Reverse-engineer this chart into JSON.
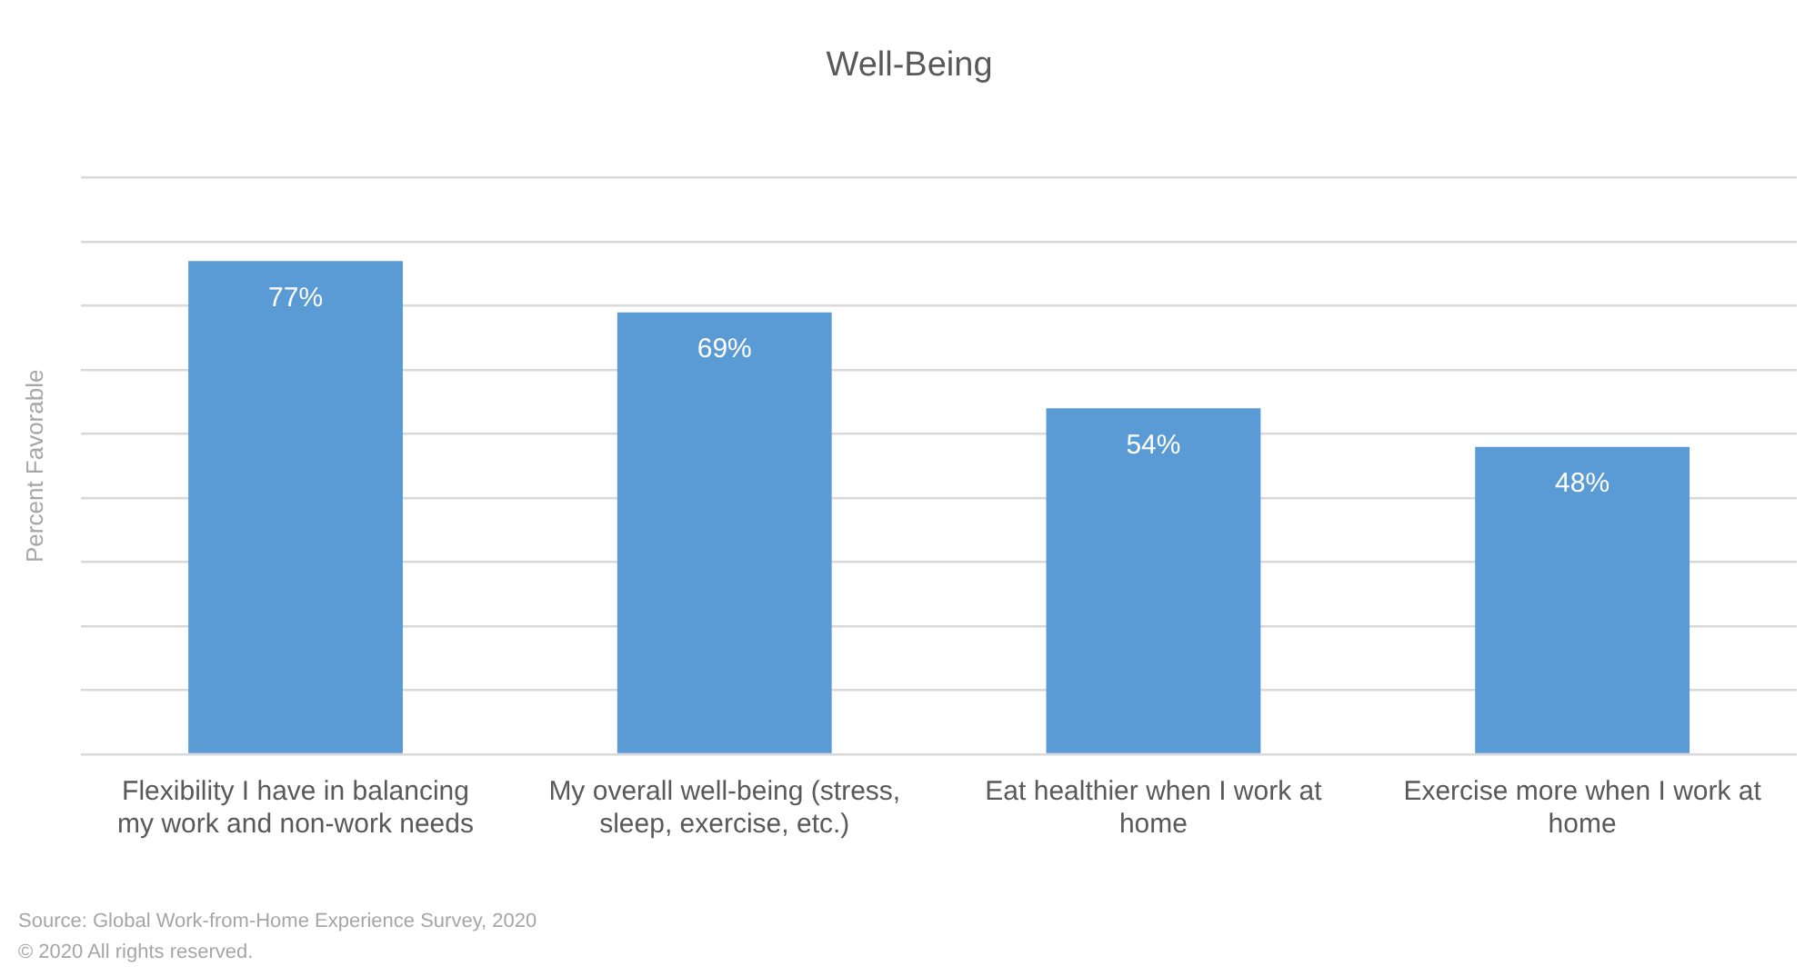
{
  "chart_data": {
    "type": "bar",
    "title": "Well-Being",
    "ylabel": "Percent Favorable",
    "categories": [
      "Flexibility I have in balancing my work and non-work needs",
      "My overall well-being (stress, sleep, exercise, etc.)",
      "Eat healthier when I work at home",
      "Exercise more when I work at home"
    ],
    "values": [
      77,
      69,
      54,
      48
    ],
    "value_labels": [
      "77%",
      "69%",
      "54%",
      "48%"
    ],
    "color": "#5b9bd5",
    "ylim": [
      0,
      90
    ],
    "yticks": [
      {
        "value": 0,
        "label": null
      },
      {
        "value": 10,
        "label": null
      },
      {
        "value": 20,
        "label": null
      },
      {
        "value": 30,
        "label": null
      },
      {
        "value": 40,
        "label": null
      },
      {
        "value": 50,
        "label": null
      },
      {
        "value": 60,
        "label": null
      },
      {
        "value": 70,
        "label": null
      },
      {
        "value": 80,
        "label": null
      },
      {
        "value": 90,
        "label": null
      }
    ],
    "grid": "y",
    "tick_labels": "x",
    "annotations": [
      "Source: Global Work-from-Home Experience Survey, 2020",
      "© 2020 All rights reserved."
    ]
  }
}
